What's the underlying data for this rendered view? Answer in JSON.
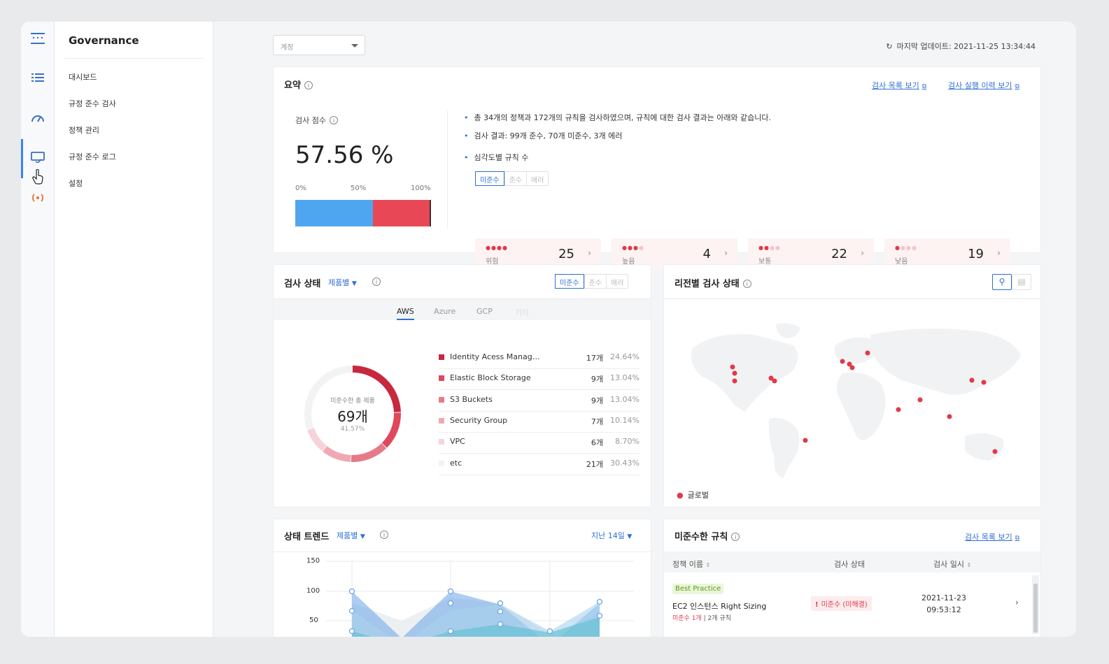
{
  "app": {
    "title": "Governance"
  },
  "sidebar": {
    "items": [
      {
        "label": "대시보드"
      },
      {
        "label": "규정 준수 검사"
      },
      {
        "label": "정책 관리"
      },
      {
        "label": "규정 준수 로그"
      },
      {
        "label": "설정"
      }
    ]
  },
  "rail": {
    "icons": [
      "menu-grid-icon",
      "list-icon",
      "gauge-icon",
      "monitor-check-icon",
      "broadcast-icon"
    ]
  },
  "toolbar": {
    "account_select_placeholder": "계정",
    "last_updated": "마지막 업데이트: 2021-11-25 13:34:44"
  },
  "summary": {
    "title": "요약",
    "link_list": "검사 목록 보기",
    "link_history": "검사 실행 이력 보기",
    "score_label": "검사 점수",
    "score": "57.56 %",
    "scale": [
      "0%",
      "50%",
      "100%"
    ],
    "score_fraction": 0.5756,
    "bullets": [
      "총 34개의 정책과 172개의 규칙을 검사하였으며, 규칙에 대한 검사 결과는 아래와 같습니다.",
      "검사 결과: 99개 준수, 70개 미준수, 3개 에러",
      "심각도별 규칙 수"
    ],
    "segments": [
      "미준수",
      "준수",
      "에러"
    ],
    "severity": [
      {
        "label": "위험",
        "count": "25",
        "level": 4
      },
      {
        "label": "높음",
        "count": "4",
        "level": 3
      },
      {
        "label": "보통",
        "count": "22",
        "level": 2
      },
      {
        "label": "낮음",
        "count": "19",
        "level": 1
      }
    ]
  },
  "status": {
    "title": "검사 상태",
    "group_by": "제품별",
    "segments": [
      "미준수",
      "준수",
      "에러"
    ],
    "tabs": [
      "AWS",
      "Azure",
      "GCP",
      "기타"
    ],
    "donut": {
      "label": "미준수한 총 제품",
      "value": "69개",
      "pct": "41.57%"
    },
    "rows": [
      {
        "name": "Identity Acess Management",
        "count": "17개",
        "pct": "24.64%",
        "share": 24.64,
        "color": "#c8283f"
      },
      {
        "name": "Elastic Block Storage",
        "count": "9개",
        "pct": "13.04%",
        "share": 13.04,
        "color": "#e0485c"
      },
      {
        "name": "S3 Buckets",
        "count": "9개",
        "pct": "13.04%",
        "share": 13.04,
        "color": "#e77a89"
      },
      {
        "name": "Security Group",
        "count": "7개",
        "pct": "10.14%",
        "share": 10.14,
        "color": "#f0a9b3"
      },
      {
        "name": "VPC",
        "count": "6개",
        "pct": "8.70%",
        "share": 8.7,
        "color": "#f6d3d8"
      },
      {
        "name": "etc",
        "count": "21개",
        "pct": "30.43%",
        "share": 30.43,
        "color": "#f3f3f4"
      }
    ]
  },
  "region": {
    "title": "리전별 검사 상태",
    "legend": "글로벌"
  },
  "trend": {
    "title": "상태 트렌드",
    "group_by": "제품별",
    "period": "지난 14일",
    "yticks": [
      "150",
      "100",
      "50"
    ]
  },
  "chart_data": {
    "type": "area",
    "title": "상태 트렌드",
    "yticks": [
      150,
      100,
      50
    ],
    "series": []
  },
  "rules": {
    "title": "미준수한 규칙",
    "link": "검사 목록 보기",
    "headers": [
      "정책 이름",
      "검사 상태",
      "검사 일시"
    ],
    "rows": [
      {
        "tag": "Best Practice",
        "name": "EC2 인스턴스 Right Sizing",
        "meta_red": "미준수 1개",
        "meta": " | 2개 규칙",
        "status": "미준수 (미해결)",
        "date": "2021-11-23",
        "time": "09:53:12"
      }
    ]
  }
}
